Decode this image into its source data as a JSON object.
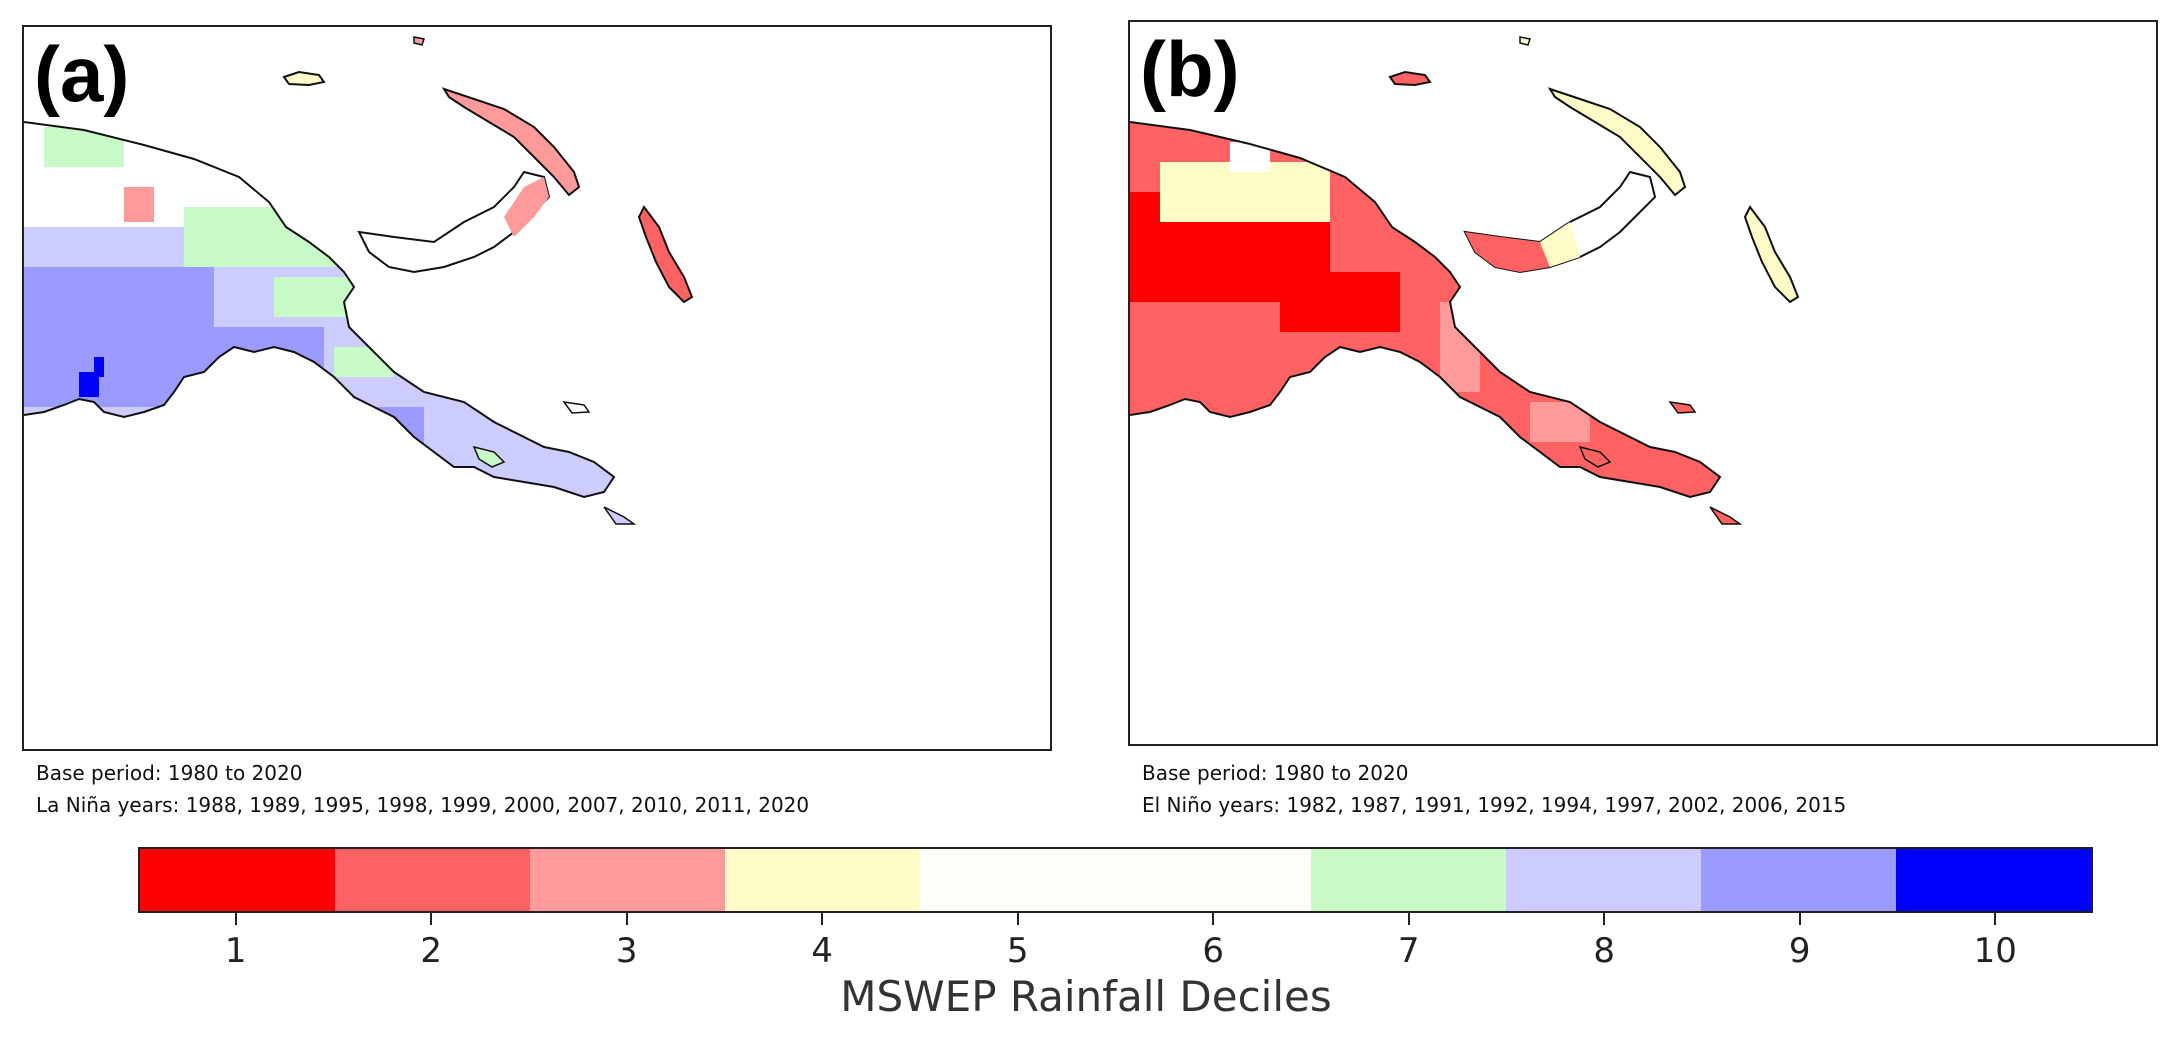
{
  "panels": [
    {
      "label": "(a)",
      "base_period": "Base period: 1980 to 2020",
      "years": "La Niña years: 1988, 1989, 1995, 1998, 1999, 2000, 2007, 2010, 2011, 2020",
      "dominant_deciles": [
        8,
        9,
        7,
        6
      ]
    },
    {
      "label": "(b)",
      "base_period": "Base period: 1980 to 2020",
      "years": "El Niño years: 1982, 1987, 1991, 1992, 1994, 1997, 2002, 2006, 2015",
      "dominant_deciles": [
        2,
        1,
        3,
        4
      ]
    }
  ],
  "colorbar": {
    "title": "MSWEP Rainfall Deciles",
    "ticks": [
      "1",
      "2",
      "3",
      "4",
      "5",
      "6",
      "7",
      "8",
      "9",
      "10"
    ],
    "colors": [
      "#ff0000",
      "#ff6262",
      "#ff9a9a",
      "#fefcc6",
      "#fdfdfa",
      "#c8fac8",
      "#ccccff",
      "#9b9bff",
      "#0000ff"
    ]
  },
  "map_colors": {
    "d1": "#ff0000",
    "d2": "#ff6262",
    "d3": "#ff9a9a",
    "d4": "#fefcc6",
    "d5": "#ffffff",
    "d7": "#c8fac8",
    "d8": "#ccccff",
    "d9": "#9b9bff",
    "d10": "#0000ff"
  }
}
